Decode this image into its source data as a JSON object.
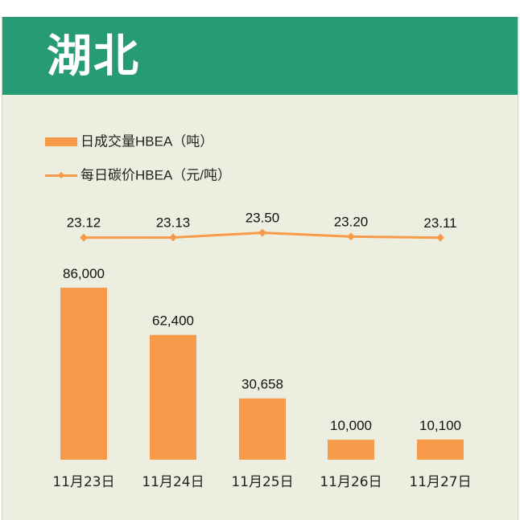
{
  "header": {
    "title": "湖北"
  },
  "legend": {
    "bar_label": "日成交量HBEA（吨）",
    "line_label": "每日碳价HBEA（元/吨）"
  },
  "colors": {
    "header_bg": "#279a76",
    "panel_bg": "#ecefdf",
    "series": "#f79a49"
  },
  "chart_data": {
    "type": "bar",
    "categories": [
      "11月23日",
      "11月24日",
      "11月25日",
      "11月26日",
      "11月27日"
    ],
    "series": [
      {
        "name": "日成交量HBEA（吨）",
        "type": "bar",
        "values": [
          86000,
          62400,
          30658,
          10000,
          10100
        ],
        "labels": [
          "86,000",
          "62,400",
          "30,658",
          "10,000",
          "10,100"
        ]
      },
      {
        "name": "每日碳价HBEA（元/吨）",
        "type": "line",
        "values": [
          23.12,
          23.13,
          23.5,
          23.2,
          23.11
        ],
        "labels": [
          "23.12",
          "23.13",
          "23.50",
          "23.20",
          "23.11"
        ]
      }
    ],
    "grid": false,
    "legend_position": "top-left"
  }
}
